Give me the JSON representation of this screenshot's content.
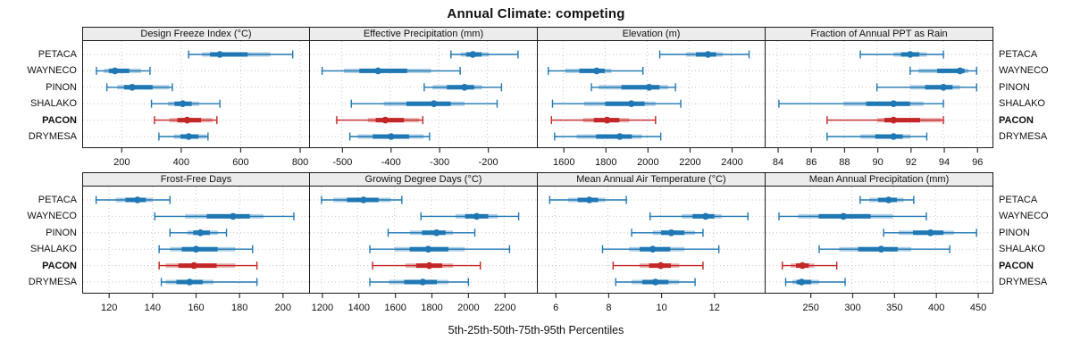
{
  "title": "Annual Climate: competing",
  "xlabel": "5th-25th-50th-75th-95th Percentiles",
  "sites": [
    "PETACA",
    "WAYNECO",
    "PINON",
    "SHALAKO",
    "PACON",
    "DRYMESA"
  ],
  "highlight_site": "PACON",
  "colors": {
    "normal": "#1f77b4",
    "highlight": "#c32626",
    "band_opacity": 0.35,
    "grid": "#c6c6c6",
    "border": "#1a1a1a",
    "strip_bg": "#ececec",
    "tick": "#333333"
  },
  "chart_data": [
    {
      "type": "percentile-interval",
      "title": "Design Freeze Index (°C)",
      "xlim": [
        70,
        830
      ],
      "ticks": [
        200,
        400,
        600,
        800
      ],
      "percentile_labels": [
        "p5",
        "p25",
        "p50",
        "p75",
        "p95"
      ],
      "series": [
        {
          "site": "PETACA",
          "values": [
            425,
            470,
            530,
            700,
            775
          ]
        },
        {
          "site": "WAYNECO",
          "values": [
            115,
            140,
            177,
            265,
            295
          ]
        },
        {
          "site": "PINON",
          "values": [
            150,
            185,
            235,
            360,
            370
          ]
        },
        {
          "site": "SHALAKO",
          "values": [
            300,
            355,
            405,
            460,
            530
          ]
        },
        {
          "site": "PACON",
          "values": [
            310,
            360,
            420,
            505,
            520
          ]
        },
        {
          "site": "DRYMESA",
          "values": [
            325,
            375,
            425,
            485,
            490
          ]
        }
      ]
    },
    {
      "type": "percentile-interval",
      "title": "Effective Precipitation (mm)",
      "xlim": [
        -565,
        -100
      ],
      "ticks": [
        -500,
        -400,
        -300,
        -200
      ],
      "percentile_labels": [
        "p5",
        "p25",
        "p50",
        "p75",
        "p95"
      ],
      "series": [
        {
          "site": "PETACA",
          "values": [
            -275,
            -255,
            -230,
            -197,
            -137
          ]
        },
        {
          "site": "WAYNECO",
          "values": [
            -540,
            -495,
            -425,
            -316,
            -256
          ]
        },
        {
          "site": "PINON",
          "values": [
            -330,
            -313,
            -247,
            -211,
            -171
          ]
        },
        {
          "site": "SHALAKO",
          "values": [
            -480,
            -413,
            -310,
            -247,
            -180
          ]
        },
        {
          "site": "PACON",
          "values": [
            -510,
            -446,
            -410,
            -340,
            -333
          ]
        },
        {
          "site": "DRYMESA",
          "values": [
            -483,
            -467,
            -398,
            -331,
            -319
          ]
        }
      ]
    },
    {
      "type": "percentile-interval",
      "title": "Elevation (m)",
      "xlim": [
        1480,
        2555
      ],
      "ticks": [
        1600,
        1800,
        2000,
        2200,
        2400
      ],
      "percentile_labels": [
        "p5",
        "p25",
        "p50",
        "p75",
        "p95"
      ],
      "series": [
        {
          "site": "PETACA",
          "values": [
            2060,
            2185,
            2290,
            2360,
            2485
          ]
        },
        {
          "site": "WAYNECO",
          "values": [
            1530,
            1610,
            1760,
            1830,
            1980
          ]
        },
        {
          "site": "PINON",
          "values": [
            1735,
            1770,
            2010,
            2100,
            2135
          ]
        },
        {
          "site": "SHALAKO",
          "values": [
            1550,
            1700,
            1925,
            2040,
            2160
          ]
        },
        {
          "site": "PACON",
          "values": [
            1545,
            1695,
            1810,
            1915,
            2040
          ]
        },
        {
          "site": "DRYMESA",
          "values": [
            1560,
            1665,
            1870,
            1975,
            2065
          ]
        }
      ]
    },
    {
      "type": "percentile-interval",
      "title": "Fraction of Annual PPT as Rain",
      "xlim": [
        83.3,
        96.9
      ],
      "ticks": [
        84,
        86,
        88,
        90,
        92,
        94,
        96
      ],
      "percentile_labels": [
        "p5",
        "p25",
        "p50",
        "p75",
        "p95"
      ],
      "series": [
        {
          "site": "PETACA",
          "values": [
            89,
            91,
            92,
            93,
            94
          ]
        },
        {
          "site": "WAYNECO",
          "values": [
            92,
            92.5,
            95,
            95.5,
            96
          ]
        },
        {
          "site": "PINON",
          "values": [
            90,
            92,
            94,
            95,
            96
          ]
        },
        {
          "site": "SHALAKO",
          "values": [
            84.1,
            88,
            91,
            92.8,
            94
          ]
        },
        {
          "site": "PACON",
          "values": [
            87,
            90,
            91,
            93.9,
            94
          ]
        },
        {
          "site": "DRYMESA",
          "values": [
            87,
            89,
            91,
            92,
            93
          ]
        }
      ]
    },
    {
      "type": "percentile-interval",
      "title": "Frost-Free Days",
      "xlim": [
        108,
        212
      ],
      "ticks": [
        120,
        140,
        160,
        180,
        200
      ],
      "percentile_labels": [
        "p5",
        "p25",
        "p50",
        "p75",
        "p95"
      ],
      "series": [
        {
          "site": "PETACA",
          "values": [
            114,
            123,
            133,
            140,
            148
          ]
        },
        {
          "site": "WAYNECO",
          "values": [
            141,
            155,
            177,
            191,
            205
          ]
        },
        {
          "site": "PINON",
          "values": [
            148,
            156,
            162,
            170,
            174
          ]
        },
        {
          "site": "SHALAKO",
          "values": [
            143,
            148,
            160,
            178,
            186
          ]
        },
        {
          "site": "PACON",
          "values": [
            143,
            146,
            159,
            178,
            188
          ]
        },
        {
          "site": "DRYMESA",
          "values": [
            144,
            146,
            157,
            168,
            188
          ]
        }
      ]
    },
    {
      "type": "percentile-interval",
      "title": "Growing Degree Days (°C)",
      "xlim": [
        1137,
        2375
      ],
      "ticks": [
        1200,
        1400,
        1600,
        1800,
        2000,
        2200
      ],
      "percentile_labels": [
        "p5",
        "p25",
        "p50",
        "p75",
        "p95"
      ],
      "series": [
        {
          "site": "PETACA",
          "values": [
            1200,
            1265,
            1430,
            1580,
            1640
          ]
        },
        {
          "site": "WAYNECO",
          "values": [
            1745,
            1935,
            2050,
            2165,
            2280
          ]
        },
        {
          "site": "PINON",
          "values": [
            1565,
            1685,
            1830,
            1920,
            2040
          ]
        },
        {
          "site": "SHALAKO",
          "values": [
            1465,
            1600,
            1785,
            1985,
            2230
          ]
        },
        {
          "site": "PACON",
          "values": [
            1480,
            1660,
            1790,
            1920,
            2070
          ]
        },
        {
          "site": "DRYMESA",
          "values": [
            1465,
            1570,
            1755,
            1895,
            2005
          ]
        }
      ]
    },
    {
      "type": "percentile-interval",
      "title": "Mean Annual Air Temperature (°C)",
      "xlim": [
        5.35,
        13.9
      ],
      "ticks": [
        6,
        8,
        10,
        12
      ],
      "percentile_labels": [
        "p5",
        "p25",
        "p50",
        "p75",
        "p95"
      ],
      "series": [
        {
          "site": "PETACA",
          "values": [
            5.8,
            6.5,
            7.3,
            7.9,
            8.7
          ]
        },
        {
          "site": "WAYNECO",
          "values": [
            9.6,
            10.8,
            11.7,
            12.3,
            13.3
          ]
        },
        {
          "site": "PINON",
          "values": [
            8.9,
            9.7,
            10.4,
            11.3,
            11.6
          ]
        },
        {
          "site": "SHALAKO",
          "values": [
            7.8,
            8.8,
            9.7,
            10.9,
            12.2
          ]
        },
        {
          "site": "PACON",
          "values": [
            8.2,
            9.2,
            10.0,
            10.7,
            11.6
          ]
        },
        {
          "site": "DRYMESA",
          "values": [
            8.3,
            8.9,
            9.8,
            10.7,
            11.3
          ]
        }
      ]
    },
    {
      "type": "percentile-interval",
      "title": "Mean Annual Precipitation (mm)",
      "xlim": [
        197,
        467
      ],
      "ticks": [
        250,
        300,
        350,
        400,
        450
      ],
      "percentile_labels": [
        "p5",
        "p25",
        "p50",
        "p75",
        "p95"
      ],
      "series": [
        {
          "site": "PETACA",
          "values": [
            310,
            321,
            344,
            362,
            374
          ]
        },
        {
          "site": "WAYNECO",
          "values": [
            213,
            236,
            290,
            349,
            389
          ]
        },
        {
          "site": "PINON",
          "values": [
            338,
            356,
            394,
            422,
            449
          ]
        },
        {
          "site": "SHALAKO",
          "values": [
            261,
            285,
            335,
            371,
            417
          ]
        },
        {
          "site": "PACON",
          "values": [
            217,
            227,
            241,
            255,
            282
          ]
        },
        {
          "site": "DRYMESA",
          "values": [
            221,
            229,
            240,
            261,
            292
          ]
        }
      ]
    }
  ]
}
